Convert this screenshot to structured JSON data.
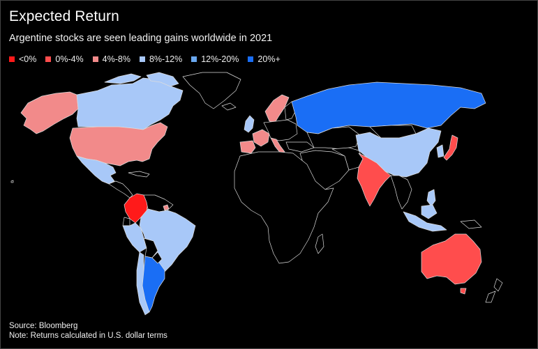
{
  "title": "Expected Return",
  "subtitle": "Argentine stocks are seen leading gains worldwide in 2021",
  "legend": [
    {
      "label": "<0%",
      "color": "#ff1a1a"
    },
    {
      "label": "0%-4%",
      "color": "#ff4d4d"
    },
    {
      "label": "4%-8%",
      "color": "#f28a8a"
    },
    {
      "label": "8%-12%",
      "color": "#a8c8f8"
    },
    {
      "label": "12%-20%",
      "color": "#6aa8f0"
    },
    {
      "label": "20%+",
      "color": "#1a6ef5"
    }
  ],
  "source": "Source: Bloomberg",
  "note": "Note: Returns calculated in U.S. dollar terms",
  "map_data": {
    "type": "choropleth",
    "regions": [
      {
        "region": "Canada",
        "bucket": "8%-12%"
      },
      {
        "region": "Alaska",
        "bucket": "4%-8%"
      },
      {
        "region": "United States",
        "bucket": "4%-8%"
      },
      {
        "region": "Mexico",
        "bucket": "8%-12%"
      },
      {
        "region": "Colombia",
        "bucket": "<0%"
      },
      {
        "region": "Brazil",
        "bucket": "8%-12%"
      },
      {
        "region": "Peru",
        "bucket": "8%-12%"
      },
      {
        "region": "Chile",
        "bucket": "8%-12%"
      },
      {
        "region": "Argentina",
        "bucket": "20%+"
      },
      {
        "region": "Russia",
        "bucket": "20%+"
      },
      {
        "region": "China",
        "bucket": "8%-12%"
      },
      {
        "region": "India",
        "bucket": "0%-4%"
      },
      {
        "region": "Japan",
        "bucket": "0%-4%"
      },
      {
        "region": "Australia",
        "bucket": "0%-4%"
      },
      {
        "region": "Europe (selected)",
        "bucket": "4%-8%"
      }
    ]
  }
}
